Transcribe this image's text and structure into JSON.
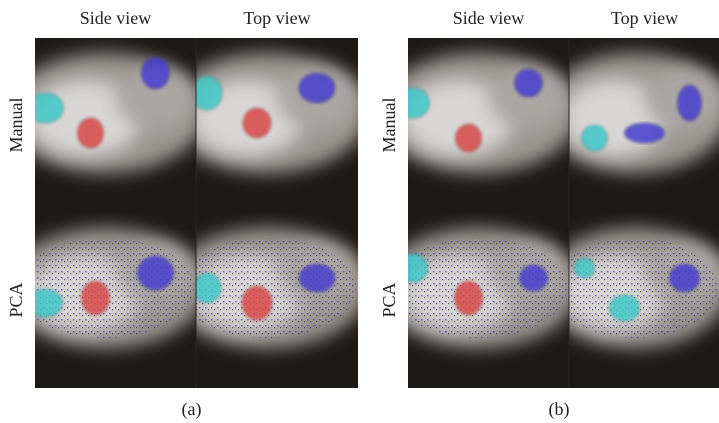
{
  "panels": [
    {
      "caption": "(a)",
      "columns": [
        "Side view",
        "Top view"
      ],
      "rows": [
        "Manual",
        "PCA"
      ]
    },
    {
      "caption": "(b)",
      "columns": [
        "Side view",
        "Top view"
      ],
      "rows": [
        "Manual",
        "PCA"
      ]
    }
  ]
}
